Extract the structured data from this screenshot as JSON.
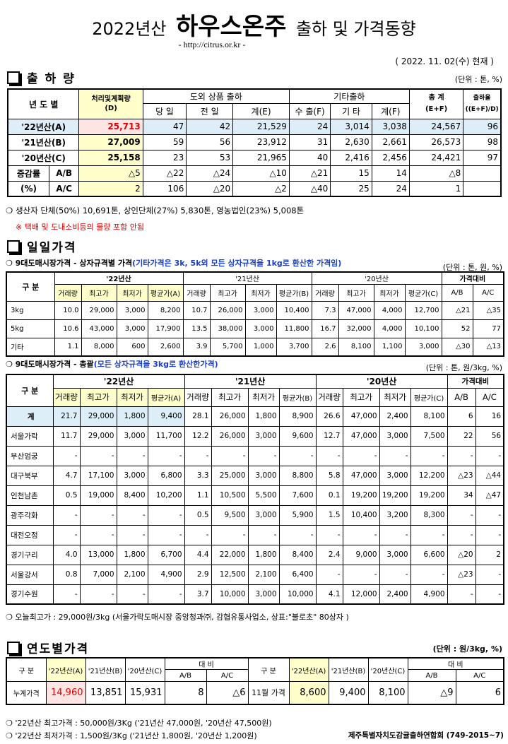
{
  "header": {
    "title_prefix": "2022년산",
    "title_main": "하우스온주",
    "title_suffix": "출하 및 가격동향",
    "url": "- http://citrus.or.kr -",
    "date": "( 2022. 11. 02(수) 현재 )"
  },
  "shipment": {
    "title": "출 하 량",
    "unit": "(단위 : 톤, %)",
    "headers": {
      "year": "년 도 별",
      "plan": "처리및계획량",
      "plan_sub": "(D)",
      "domestic": "도외 상품 출하",
      "other": "기타출하",
      "total": "총 계",
      "ratio": "출하율",
      "d_today": "당 일",
      "d_prev": "전 일",
      "d_sum": "계(E)",
      "o_export": "수 출(F)",
      "o_etc": "기 타",
      "o_sum": "계(F)",
      "total_sub": "(E+F)",
      "ratio_sub": "((E+F)/D)"
    },
    "rows": [
      {
        "year": "'22년산(A)",
        "plan": "25,713",
        "today": "47",
        "prev": "42",
        "dsum": "21,529",
        "export": "24",
        "etc": "3,014",
        "osum": "3,038",
        "total": "24,567",
        "ratio": "96"
      },
      {
        "year": "'21년산(B)",
        "plan": "27,009",
        "today": "59",
        "prev": "56",
        "dsum": "23,912",
        "export": "31",
        "etc": "2,630",
        "osum": "2,661",
        "total": "26,573",
        "ratio": "98"
      },
      {
        "year": "'20년산(C)",
        "plan": "25,158",
        "today": "23",
        "prev": "53",
        "dsum": "21,965",
        "export": "40",
        "etc": "2,416",
        "osum": "2,456",
        "total": "24,421",
        "ratio": "97"
      }
    ],
    "change_label": "증감률",
    "pct_label": "(%)",
    "change_rows": [
      {
        "label": "A/B",
        "plan": "△5",
        "today": "△22",
        "prev": "△24",
        "dsum": "△10",
        "export": "△21",
        "etc": "15",
        "osum": "14",
        "total": "△8",
        "ratio": ""
      },
      {
        "label": "A/C",
        "plan": "2",
        "today": "106",
        "prev": "△20",
        "dsum": "△2",
        "export": "△40",
        "etc": "25",
        "osum": "24",
        "total": "1",
        "ratio": ""
      }
    ],
    "note1": "생산자 단체(50%) 10,691톤,   상인단체(27%) 5,830톤,   영농법인(23%)   5,008톤",
    "note2": "※ 택배 및 도내소비등의 물량 포함 안됨"
  },
  "daily": {
    "title": "일일가격",
    "size_title": "9대도매시장가격 - 상자규격별 가격",
    "size_title_note": "(기타가격은 3k, 5k외 모든 상자규격을 1kg로 환산한 가격임)",
    "size_unit": "(단위 : 톤, 원, %)",
    "gubun": "구  분",
    "y22": "'22년산",
    "y21": "'21년산",
    "y20": "'20년산",
    "compare": "가격대비",
    "cols": [
      "거래량",
      "최고가",
      "최저가"
    ],
    "avgA": "평균가(A)",
    "avgB": "평균가(B)",
    "avgC": "평균가(C)",
    "ab": "A/B",
    "ac": "A/C",
    "size_rows": [
      {
        "label": "3kg",
        "v": [
          "10.0",
          "29,000",
          "3,000",
          "8,200",
          "10.7",
          "26,000",
          "3,000",
          "10,400",
          "7.3",
          "47,000",
          "4,000",
          "12,700",
          "△21",
          "△35"
        ]
      },
      {
        "label": "5kg",
        "v": [
          "10.6",
          "43,000",
          "3,000",
          "17,900",
          "13.5",
          "38,000",
          "3,000",
          "11,800",
          "16.7",
          "32,000",
          "4,000",
          "10,100",
          "52",
          "77"
        ]
      },
      {
        "label": "기타",
        "v": [
          "1.1",
          "8,000",
          "600",
          "2,600",
          "3.9",
          "5,700",
          "1,000",
          "3,700",
          "2.6",
          "8,100",
          "1,100",
          "3,000",
          "△30",
          "△13"
        ]
      }
    ],
    "total_title": "9대도매시장가격 - 총괄",
    "total_title_note": "(모든 상자규격을 3kg로 환산한가격)",
    "total_unit": "(단위 : 톤, 원/3kg, %)",
    "total_rows": [
      {
        "label": "계",
        "v": [
          "21.7",
          "29,000",
          "1,800",
          "9,400",
          "28.1",
          "26,000",
          "1,800",
          "8,900",
          "26.6",
          "47,000",
          "2,400",
          "8,100",
          "6",
          "16"
        ]
      },
      {
        "label": "서울가락",
        "v": [
          "11.7",
          "29,000",
          "3,000",
          "11,700",
          "12.2",
          "26,000",
          "3,000",
          "9,600",
          "12.7",
          "47,000",
          "3,000",
          "7,500",
          "22",
          "56"
        ]
      },
      {
        "label": "부산엄궁",
        "v": [
          "-",
          "-",
          "-",
          "-",
          "-",
          "-",
          "-",
          "-",
          "-",
          "-",
          "-",
          "-",
          "-",
          "-"
        ]
      },
      {
        "label": "대구북부",
        "v": [
          "4.7",
          "17,100",
          "3,000",
          "6,800",
          "3.3",
          "25,000",
          "3,000",
          "8,800",
          "5.8",
          "47,000",
          "3,000",
          "12,200",
          "△23",
          "△44"
        ]
      },
      {
        "label": "인천남촌",
        "v": [
          "0.5",
          "19,000",
          "8,400",
          "10,200",
          "1.1",
          "10,500",
          "5,500",
          "7,600",
          "0.1",
          "19,200",
          "19,200",
          "19,200",
          "34",
          "△47"
        ]
      },
      {
        "label": "광주각화",
        "v": [
          "-",
          "-",
          "-",
          "-",
          "0.5",
          "9,500",
          "3,000",
          "5,900",
          "1.5",
          "10,400",
          "3,200",
          "8,300",
          "-",
          "-"
        ]
      },
      {
        "label": "대전오정",
        "v": [
          "-",
          "-",
          "-",
          "-",
          "-",
          "-",
          "-",
          "-",
          "-",
          "-",
          "-",
          "-",
          "-",
          "-"
        ]
      },
      {
        "label": "경기구리",
        "v": [
          "4.0",
          "13,000",
          "1,800",
          "6,700",
          "4.4",
          "22,000",
          "1,800",
          "8,400",
          "2.4",
          "9,000",
          "3,000",
          "6,600",
          "△20",
          "2"
        ]
      },
      {
        "label": "서울강서",
        "v": [
          "0.8",
          "7,000",
          "2,100",
          "4,900",
          "2.9",
          "12,500",
          "2,100",
          "6,400",
          "-",
          "-",
          "-",
          "-",
          "△23",
          "-"
        ]
      },
      {
        "label": "경기수원",
        "v": [
          "-",
          "-",
          "-",
          "-",
          "3.7",
          "10,000",
          "3,000",
          "10,000",
          "4.1",
          "12,000",
          "2,400",
          "4,900",
          "-",
          "-"
        ]
      }
    ],
    "today_note": "오늘최고가 : 29,000원/3kg (서울가락도매시장  중앙청과㈜,   감협유통사업소,   상표:\"불로초\"   80상자 )"
  },
  "annual": {
    "title": "연도별가격",
    "unit": "(단위 : 원/3kg, %)",
    "gubun": "구  분",
    "a": "'22년산(A)",
    "b": "'21년산(B)",
    "c": "'20년산(C)",
    "compare": "대    비",
    "ab": "A/B",
    "ac": "A/C",
    "rows": [
      {
        "label": "누계가격",
        "a": "14,960",
        "b": "13,851",
        "c": "15,931",
        "ab": "8",
        "ac": "△6"
      },
      {
        "label": "11월 가격",
        "a": "8,600",
        "b": "9,400",
        "c": "8,100",
        "ab": "△9",
        "ac": "6"
      }
    ],
    "note_max": "'22년산 최고가격 : 50,000원/3Kg ('21년산 47,000원, '20년산 47,500원)",
    "note_min": "'22년산 최저가격 :   1,500원/3Kg ('21년산   1,800원, '20년산 1,200원)",
    "org": "제주특별자치도감귤출하연합회 (749-2015~7)"
  },
  "colors": {
    "red": "#e00000",
    "yellow": "#ffffcc",
    "blue": "#ddeef8",
    "note_blue": "#1a3fc9"
  }
}
